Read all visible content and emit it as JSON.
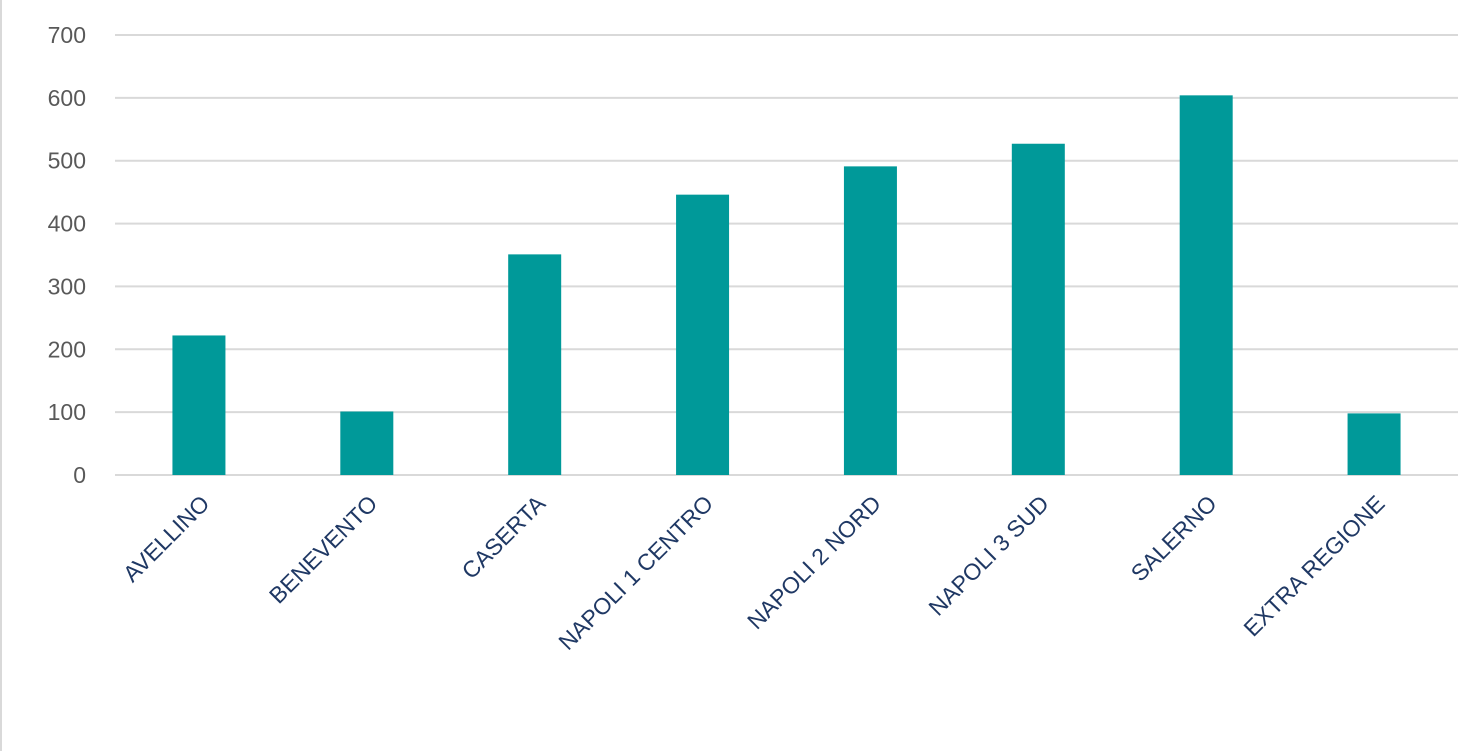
{
  "chart_data": {
    "type": "bar",
    "title": "",
    "xlabel": "",
    "ylabel": "",
    "categories": [
      "AVELLINO",
      "BENEVENTO",
      "CASERTA",
      "NAPOLI 1 CENTRO",
      "NAPOLI 2 NORD",
      "NAPOLI 3 SUD",
      "SALERNO",
      "EXTRA REGIONE"
    ],
    "values": [
      222,
      101,
      351,
      446,
      491,
      527,
      604,
      98
    ],
    "ylim": [
      0,
      700
    ],
    "yticks": [
      0,
      100,
      200,
      300,
      400,
      500,
      600,
      700
    ],
    "grid": true,
    "legend": "none",
    "colors": {
      "bar": "#009999",
      "grid": "#d9d9d9",
      "tick_text": "#595959",
      "category_text": "#1f3864"
    }
  }
}
